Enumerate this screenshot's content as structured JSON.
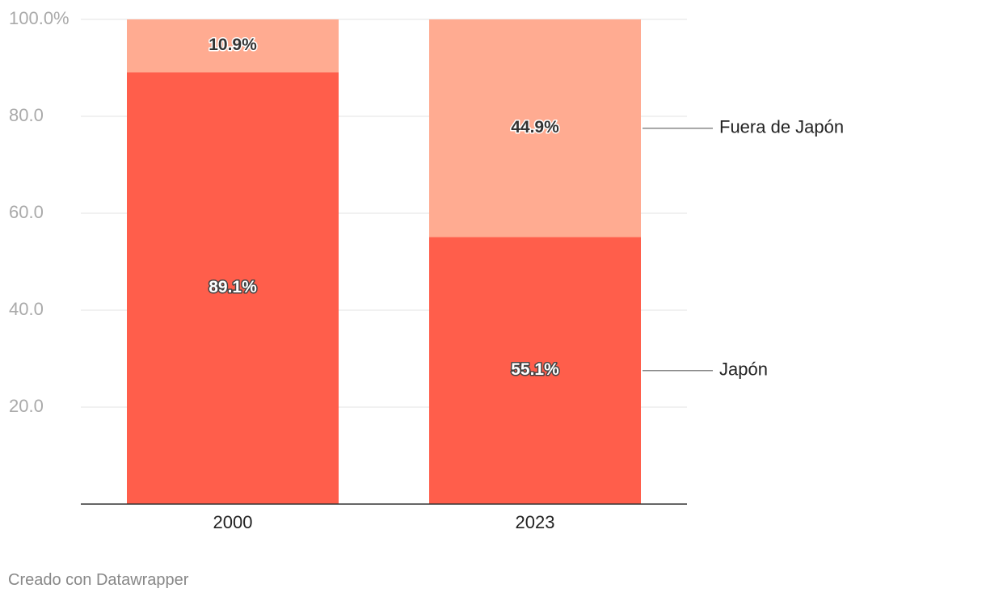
{
  "chart_data": {
    "type": "bar",
    "stacked": true,
    "categories": [
      "2000",
      "2023"
    ],
    "series": [
      {
        "name": "Japón",
        "values": [
          89.1,
          55.1
        ],
        "labels": [
          "89.1%",
          "55.1%"
        ],
        "color": "#ff5e4b"
      },
      {
        "name": "Fuera de Japón",
        "values": [
          10.9,
          44.9
        ],
        "labels": [
          "10.9%",
          "44.9%"
        ],
        "color": "#ffab91"
      }
    ],
    "ylim": [
      0,
      100
    ],
    "yticks": [
      {
        "value": 20,
        "label": "20.0"
      },
      {
        "value": 40,
        "label": "40.0"
      },
      {
        "value": 60,
        "label": "60.0"
      },
      {
        "value": 80,
        "label": "80.0"
      },
      {
        "value": 100,
        "label": "100.0%"
      }
    ],
    "grid": true,
    "legend": "direct labels right of last bar"
  },
  "footer": "Creado con Datawrapper"
}
